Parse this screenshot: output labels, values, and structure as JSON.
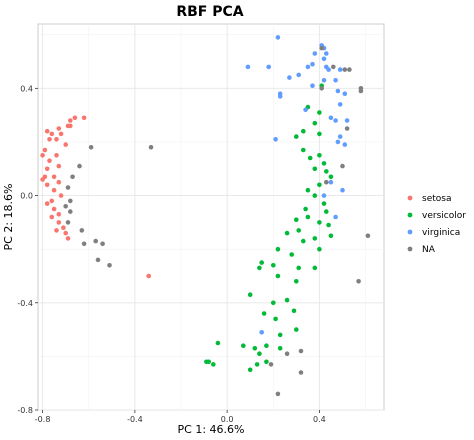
{
  "chart_data": {
    "type": "scatter",
    "title": "RBF PCA",
    "xlabel": "PC 1: 46.6%",
    "ylabel": "PC 2: 18.6%",
    "xlim": [
      -0.82,
      0.68
    ],
    "ylim": [
      -0.8,
      0.64
    ],
    "xticks": [
      -0.8,
      -0.4,
      0.0,
      0.4
    ],
    "xtick_labels": [
      "-0.8",
      "-0.4",
      "0.0",
      "0.4"
    ],
    "yticks": [
      -0.8,
      -0.4,
      0.0,
      0.4
    ],
    "ytick_labels": [
      "-0.8",
      "-0.4",
      "0.0",
      "0.4"
    ],
    "grid": true,
    "legend_position": "right",
    "series": [
      {
        "name": "setosa",
        "color": "#F8766D",
        "points": [
          [
            -0.62,
            0.29
          ],
          [
            -0.66,
            0.29
          ],
          [
            -0.68,
            0.28
          ],
          [
            -0.69,
            0.26
          ],
          [
            -0.73,
            0.25
          ],
          [
            -0.78,
            0.24
          ],
          [
            -0.76,
            0.23
          ],
          [
            -0.72,
            0.23
          ],
          [
            -0.68,
            0.26
          ],
          [
            -0.77,
            0.21
          ],
          [
            -0.74,
            0.21
          ],
          [
            -0.7,
            0.19
          ],
          [
            -0.79,
            0.17
          ],
          [
            -0.8,
            0.15
          ],
          [
            -0.74,
            0.15
          ],
          [
            -0.77,
            0.13
          ],
          [
            -0.73,
            0.11
          ],
          [
            -0.78,
            0.1
          ],
          [
            -0.79,
            0.07
          ],
          [
            -0.75,
            0.07
          ],
          [
            -0.8,
            0.06
          ],
          [
            -0.73,
            0.05
          ],
          [
            -0.78,
            0.04
          ],
          [
            -0.75,
            0.02
          ],
          [
            -0.72,
            0.0
          ],
          [
            -0.76,
            -0.02
          ],
          [
            -0.78,
            -0.03
          ],
          [
            -0.75,
            -0.05
          ],
          [
            -0.73,
            -0.07
          ],
          [
            -0.76,
            -0.08
          ],
          [
            -0.73,
            -0.1
          ],
          [
            -0.71,
            -0.12
          ],
          [
            -0.74,
            -0.13
          ],
          [
            -0.7,
            -0.14
          ],
          [
            -0.69,
            -0.16
          ],
          [
            -0.34,
            -0.3
          ]
        ]
      },
      {
        "name": "versicolor",
        "color": "#00BA38",
        "points": [
          [
            0.41,
            0.41
          ],
          [
            0.35,
            0.33
          ],
          [
            0.4,
            0.31
          ],
          [
            0.38,
            0.27
          ],
          [
            0.33,
            0.24
          ],
          [
            0.4,
            0.23
          ],
          [
            0.3,
            0.22
          ],
          [
            0.33,
            0.17
          ],
          [
            0.4,
            0.15
          ],
          [
            0.36,
            0.14
          ],
          [
            0.42,
            0.12
          ],
          [
            0.38,
            0.1
          ],
          [
            0.43,
            0.09
          ],
          [
            0.45,
            0.07
          ],
          [
            0.35,
            0.02
          ],
          [
            0.4,
            0.04
          ],
          [
            0.38,
            0.0
          ],
          [
            0.42,
            -0.03
          ],
          [
            0.34,
            -0.05
          ],
          [
            0.43,
            -0.06
          ],
          [
            0.35,
            -0.08
          ],
          [
            0.3,
            -0.09
          ],
          [
            0.4,
            -0.1
          ],
          [
            0.44,
            -0.11
          ],
          [
            0.31,
            -0.13
          ],
          [
            0.26,
            -0.14
          ],
          [
            0.38,
            -0.16
          ],
          [
            0.45,
            -0.15
          ],
          [
            0.33,
            -0.17
          ],
          [
            0.22,
            -0.2
          ],
          [
            0.4,
            -0.2
          ],
          [
            0.28,
            -0.22
          ],
          [
            0.15,
            -0.25
          ],
          [
            0.2,
            -0.26
          ],
          [
            0.31,
            -0.27
          ],
          [
            0.38,
            -0.27
          ],
          [
            0.14,
            -0.27
          ],
          [
            0.22,
            -0.3
          ],
          [
            0.3,
            -0.32
          ],
          [
            0.1,
            -0.37
          ],
          [
            0.26,
            -0.39
          ],
          [
            0.2,
            -0.4
          ],
          [
            0.29,
            -0.43
          ],
          [
            0.16,
            -0.44
          ],
          [
            0.21,
            -0.46
          ],
          [
            0.3,
            -0.5
          ],
          [
            0.23,
            -0.52
          ],
          [
            -0.04,
            -0.55
          ],
          [
            0.07,
            -0.56
          ],
          [
            0.17,
            -0.56
          ],
          [
            0.12,
            -0.57
          ],
          [
            0.23,
            -0.57
          ],
          [
            0.14,
            -0.59
          ],
          [
            0.17,
            -0.62
          ],
          [
            -0.09,
            -0.62
          ],
          [
            -0.08,
            -0.62
          ],
          [
            -0.06,
            -0.63
          ],
          [
            0.13,
            -0.63
          ],
          [
            0.1,
            -0.65
          ]
        ]
      },
      {
        "name": "virginica",
        "color": "#619CFF",
        "points": [
          [
            0.22,
            0.59
          ],
          [
            0.41,
            0.56
          ],
          [
            0.42,
            0.55
          ],
          [
            0.38,
            0.53
          ],
          [
            0.43,
            0.53
          ],
          [
            0.42,
            0.51
          ],
          [
            0.37,
            0.49
          ],
          [
            0.43,
            0.48
          ],
          [
            0.09,
            0.48
          ],
          [
            0.18,
            0.48
          ],
          [
            0.35,
            0.48
          ],
          [
            0.44,
            0.47
          ],
          [
            0.49,
            0.47
          ],
          [
            0.27,
            0.44
          ],
          [
            0.31,
            0.45
          ],
          [
            0.42,
            0.43
          ],
          [
            0.47,
            0.43
          ],
          [
            0.37,
            0.41
          ],
          [
            0.48,
            0.39
          ],
          [
            0.51,
            0.38
          ],
          [
            0.23,
            0.37
          ],
          [
            0.23,
            0.38
          ],
          [
            0.34,
            0.32
          ],
          [
            0.49,
            0.34
          ],
          [
            0.45,
            0.29
          ],
          [
            0.47,
            0.28
          ],
          [
            0.52,
            0.28
          ],
          [
            0.49,
            0.22
          ],
          [
            0.48,
            0.2
          ],
          [
            0.51,
            0.19
          ],
          [
            0.21,
            0.21
          ],
          [
            0.45,
            0.05
          ],
          [
            0.5,
            0.02
          ],
          [
            0.42,
            0.0
          ],
          [
            0.47,
            -0.08
          ],
          [
            0.15,
            -0.51
          ]
        ]
      },
      {
        "name": "NA",
        "color": "#7F7F7F",
        "points": [
          [
            0.41,
            0.55
          ],
          [
            0.46,
            0.48
          ],
          [
            0.51,
            0.47
          ],
          [
            0.53,
            0.47
          ],
          [
            0.58,
            0.4
          ],
          [
            0.58,
            0.39
          ],
          [
            0.41,
            0.4
          ],
          [
            0.52,
            0.25
          ],
          [
            0.5,
            0.11
          ],
          [
            0.43,
            0.05
          ],
          [
            0.61,
            -0.15
          ],
          [
            0.57,
            -0.32
          ],
          [
            0.32,
            -0.58
          ],
          [
            0.26,
            -0.59
          ],
          [
            0.19,
            -0.63
          ],
          [
            0.32,
            -0.66
          ],
          [
            0.22,
            -0.74
          ],
          [
            -0.33,
            0.18
          ],
          [
            -0.59,
            0.18
          ],
          [
            -0.64,
            0.11
          ],
          [
            -0.67,
            0.07
          ],
          [
            -0.69,
            0.03
          ],
          [
            -0.68,
            -0.02
          ],
          [
            -0.7,
            -0.04
          ],
          [
            -0.68,
            -0.06
          ],
          [
            -0.69,
            -0.1
          ],
          [
            -0.63,
            -0.13
          ],
          [
            -0.57,
            -0.17
          ],
          [
            -0.54,
            -0.18
          ],
          [
            -0.62,
            -0.18
          ],
          [
            -0.56,
            -0.24
          ],
          [
            -0.51,
            -0.26
          ]
        ]
      }
    ]
  }
}
